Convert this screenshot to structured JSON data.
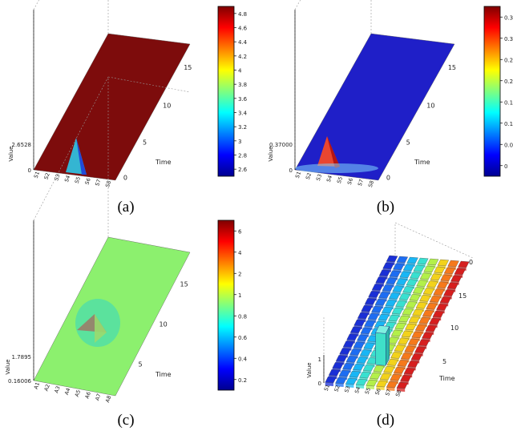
{
  "panels": [
    {
      "label": "(a)",
      "chart_data": {
        "type": "surface3d",
        "zlabel": "Value",
        "ylabel": "Time",
        "z_ticks": [
          "0",
          "2.6528"
        ],
        "y_ticks": [
          "0",
          "5",
          "10",
          "15"
        ],
        "x_ticks": [
          "S1",
          "S2",
          "S3",
          "S4",
          "S5",
          "S6",
          "S7",
          "S8"
        ],
        "colorbar_ticks": [
          "2.6",
          "2.8",
          "3",
          "3.2",
          "3.4",
          "3.6",
          "3.8",
          "4",
          "4.2",
          "4.4",
          "4.6",
          "4.8"
        ],
        "colormap": "jet",
        "peak": {
          "series": "S4",
          "time": 1,
          "value": 2.6528
        },
        "colors": {
          "surface": "#7d0c0c"
        }
      }
    },
    {
      "label": "(b)",
      "chart_data": {
        "type": "surface3d",
        "zlabel": "Value",
        "ylabel": "Time",
        "z_ticks": [
          "0",
          "0.37000"
        ],
        "y_ticks": [
          "0",
          "5",
          "10",
          "15"
        ],
        "x_ticks": [
          "S1",
          "S2",
          "S3",
          "S4",
          "S5",
          "S6",
          "S7",
          "S8"
        ],
        "colorbar_ticks": [
          "0",
          "0.05",
          "0.1",
          "0.15",
          "0.2",
          "0.25",
          "0.3",
          "0.35"
        ],
        "colormap": "jet",
        "peak": {
          "series": "S4",
          "time": 1,
          "value": 0.37
        },
        "colors": {
          "surface": "#1f1fc8"
        }
      }
    },
    {
      "label": "(c)",
      "chart_data": {
        "type": "surface3d",
        "zlabel": "Value",
        "ylabel": "Time",
        "z_ticks": [
          "0.16006",
          "1.7895"
        ],
        "y_ticks": [
          "5",
          "10",
          "15"
        ],
        "x_ticks": [
          "A1",
          "A2",
          "A3",
          "A4",
          "A5",
          "A6",
          "A7",
          "A8"
        ],
        "colorbar_ticks": [
          "0.2",
          "0.4",
          "0.6",
          "0.8",
          "1",
          "2",
          "4",
          "6"
        ],
        "colormap": "jet",
        "peak": {
          "series": "A4",
          "time": 7,
          "value": 1.7895
        },
        "colors": {
          "surface": "#8cf06e"
        }
      }
    },
    {
      "label": "(d)",
      "chart_data": {
        "type": "bar3d",
        "zlabel": "Value",
        "ylabel": "Time",
        "z_ticks": [
          "0",
          "1"
        ],
        "y_ticks": [
          "5",
          "10",
          "15",
          "0"
        ],
        "x_ticks": [
          "S1",
          "S2",
          "S3",
          "S4",
          "S5",
          "S6",
          "S7",
          "S8"
        ],
        "rows": 18,
        "highlight": {
          "column": 4,
          "row": 3,
          "value": 1
        },
        "column_colors": [
          "#1a2fd6",
          "#1d6df2",
          "#19b6f5",
          "#39e0d0",
          "#b3f04a",
          "#f2d21c",
          "#f5791c",
          "#d61e1e"
        ]
      }
    }
  ]
}
